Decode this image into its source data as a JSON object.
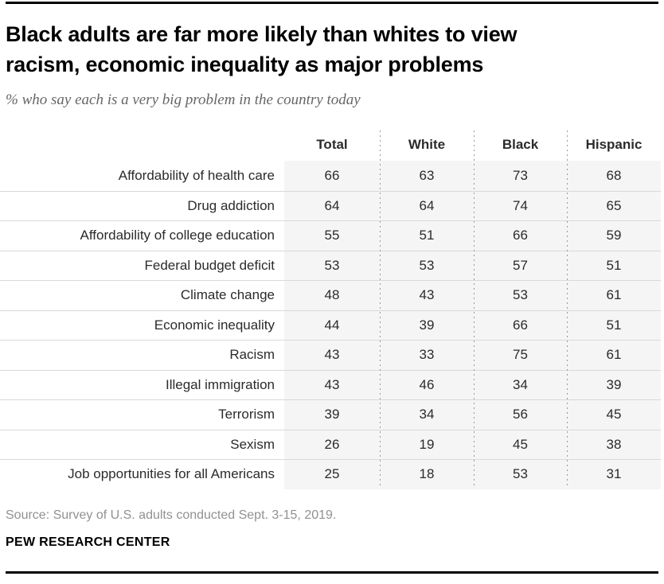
{
  "header": {
    "title_line1": "Black adults are far more likely than whites to view",
    "title_line2": "racism, economic inequality as major problems",
    "subtitle": "% who say each is a very big problem in the country today"
  },
  "chart_data": {
    "type": "table",
    "title": "Black adults are far more likely than whites to view racism, economic inequality as major problems",
    "subtitle": "% who say each is a very big problem in the country today",
    "columns": [
      "Total",
      "White",
      "Black",
      "Hispanic"
    ],
    "rows": [
      {
        "label": "Affordability of health care",
        "values": [
          66,
          63,
          73,
          68
        ]
      },
      {
        "label": "Drug addiction",
        "values": [
          64,
          64,
          74,
          65
        ]
      },
      {
        "label": "Affordability of college education",
        "values": [
          55,
          51,
          66,
          59
        ]
      },
      {
        "label": "Federal budget deficit",
        "values": [
          53,
          53,
          57,
          51
        ]
      },
      {
        "label": "Climate change",
        "values": [
          48,
          43,
          53,
          61
        ]
      },
      {
        "label": "Economic inequality",
        "values": [
          44,
          39,
          66,
          51
        ]
      },
      {
        "label": "Racism",
        "values": [
          43,
          33,
          75,
          61
        ]
      },
      {
        "label": "Illegal immigration",
        "values": [
          43,
          46,
          34,
          39
        ]
      },
      {
        "label": "Terrorism",
        "values": [
          39,
          34,
          56,
          45
        ]
      },
      {
        "label": "Sexism",
        "values": [
          26,
          19,
          45,
          38
        ]
      },
      {
        "label": "Job opportunities for all Americans",
        "values": [
          25,
          18,
          53,
          31
        ]
      }
    ]
  },
  "footer": {
    "source": "Source: Survey of U.S. adults conducted Sept. 3-15, 2019.",
    "brand": "PEW RESEARCH CENTER"
  },
  "colors": {
    "rule": "#000000",
    "title_text": "#000000",
    "subtitle_text": "#666666",
    "table_text": "#2b2b2b",
    "row_divider": "#d9d9d9",
    "column_divider_dots": "#999999",
    "shaded_band": "#f5f5f5",
    "source_text": "#919191"
  }
}
